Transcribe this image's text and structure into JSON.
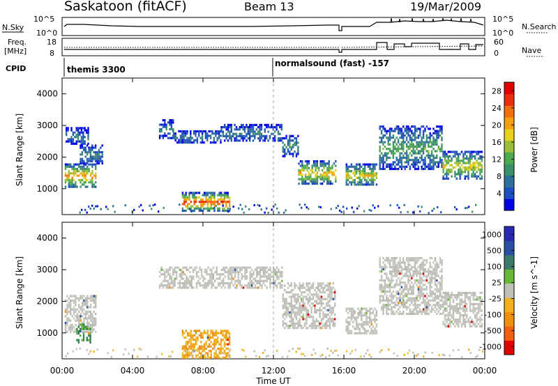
{
  "header": {
    "station": "Saskatoon (fitACF)",
    "beam": "Beam 13",
    "date": "19/Mar/2009"
  },
  "noise_panel": {
    "left_label": "N.Sky",
    "right_label": "N.Search",
    "tick_top": "10^5",
    "tick_bottom": "10^0"
  },
  "freq_panel": {
    "left_label_1": "Freq.",
    "left_label_2": "[MHz]",
    "left_ticks": [
      "18",
      "8"
    ],
    "right_ticks": [
      "60",
      "0"
    ],
    "right_label": "Nave"
  },
  "cpid": {
    "label": "CPID",
    "entries": [
      "themis 3300",
      "normalsound (fast) -157"
    ],
    "switch_time": 12.0
  },
  "chart_data": [
    {
      "type": "heatmap",
      "title": "Power",
      "ylabel": "Slant Range [km]",
      "xlabel": "",
      "x_range": [
        0,
        24
      ],
      "ylim": [
        180,
        4500
      ],
      "yticks": [
        "1000",
        "2000",
        "3000",
        "4000"
      ],
      "colorbar": {
        "label": "Power [dB]",
        "ticks": [
          "4",
          "8",
          "12",
          "16",
          "20",
          "24",
          "28"
        ],
        "range": [
          0,
          30
        ],
        "colors": [
          "#0000e6",
          "#1f4fbf",
          "#2f6f9a",
          "#3d8f6a",
          "#4fa84f",
          "#9bbf3a",
          "#e6d020",
          "#f0a010",
          "#f07010",
          "#e83010",
          "#e00000"
        ]
      },
      "regions": [
        {
          "t": [
            0.15,
            1.9
          ],
          "r": [
            1050,
            1800
          ],
          "v": 22
        },
        {
          "t": [
            0.2,
            1.5
          ],
          "r": [
            2400,
            2950
          ],
          "v": 8
        },
        {
          "t": [
            1.0,
            2.3
          ],
          "r": [
            1800,
            2400
          ],
          "v": 8
        },
        {
          "t": [
            5.5,
            6.3
          ],
          "r": [
            2600,
            3200
          ],
          "v": 8
        },
        {
          "t": [
            6.3,
            9.0
          ],
          "r": [
            2450,
            2850
          ],
          "v": 8
        },
        {
          "t": [
            9.0,
            12.5
          ],
          "r": [
            2500,
            3050
          ],
          "v": 8
        },
        {
          "t": [
            12.5,
            13.4
          ],
          "r": [
            2050,
            2700
          ],
          "v": 10
        },
        {
          "t": [
            13.4,
            15.5
          ],
          "r": [
            1150,
            1900
          ],
          "v": 20
        },
        {
          "t": [
            6.8,
            9.5
          ],
          "r": [
            300,
            900
          ],
          "v": 26
        },
        {
          "t": [
            16.1,
            17.9
          ],
          "r": [
            1100,
            1800
          ],
          "v": 18
        },
        {
          "t": [
            18.0,
            21.6
          ],
          "r": [
            1600,
            3000
          ],
          "v": 12
        },
        {
          "t": [
            21.6,
            23.8
          ],
          "r": [
            1300,
            2200
          ],
          "v": 18
        }
      ]
    },
    {
      "type": "heatmap",
      "title": "Velocity",
      "ylabel": "Slant Range [km]",
      "xlabel": "Time UT",
      "x_range": [
        0,
        24
      ],
      "xticks": [
        "00:00",
        "04:00",
        "08:00",
        "12:00",
        "16:00",
        "20:00",
        "00:00"
      ],
      "ylim": [
        180,
        4500
      ],
      "yticks": [
        "1000",
        "2000",
        "3000",
        "4000"
      ],
      "colorbar": {
        "label": "Velocity [m s^-1]",
        "ticks": [
          "1000",
          "500",
          "100",
          "25",
          "-25",
          "-100",
          "-500",
          "-1000"
        ],
        "colors": [
          "#2a2ab0",
          "#2a4fa0",
          "#3a7a6a",
          "#6ab83a",
          "#c0c0b8",
          "#f0b020",
          "#f09010",
          "#f06010",
          "#e00000"
        ]
      },
      "regions": [
        {
          "t": [
            0.15,
            1.9
          ],
          "r": [
            1050,
            2200
          ],
          "v": "grey"
        },
        {
          "t": [
            0.8,
            1.6
          ],
          "r": [
            700,
            1300
          ],
          "v": "green"
        },
        {
          "t": [
            5.5,
            12.5
          ],
          "r": [
            2400,
            3100
          ],
          "v": "grey"
        },
        {
          "t": [
            12.5,
            15.5
          ],
          "r": [
            1150,
            2600
          ],
          "v": "grey"
        },
        {
          "t": [
            6.8,
            9.5
          ],
          "r": [
            200,
            1100
          ],
          "v": "orange"
        },
        {
          "t": [
            16.1,
            17.9
          ],
          "r": [
            1000,
            1800
          ],
          "v": "grey"
        },
        {
          "t": [
            18.0,
            21.6
          ],
          "r": [
            1600,
            3400
          ],
          "v": "grey"
        },
        {
          "t": [
            21.6,
            23.8
          ],
          "r": [
            1200,
            2300
          ],
          "v": "grey"
        }
      ]
    }
  ]
}
